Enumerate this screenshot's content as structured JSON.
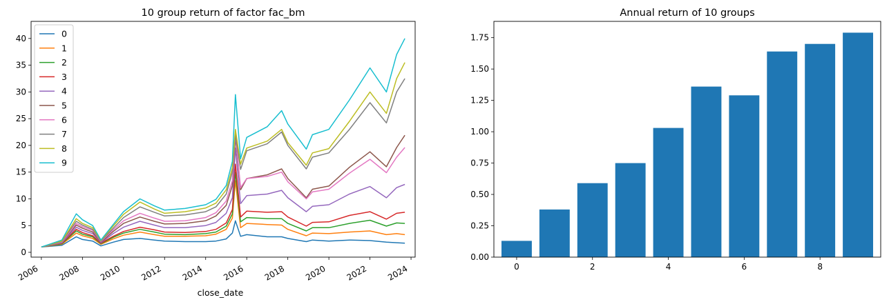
{
  "chart_data": [
    {
      "type": "line",
      "title": "10 group return of factor fac_bm",
      "xlabel": "close_date",
      "ylabel": "",
      "xlim": [
        2005.5,
        2024.2
      ],
      "ylim": [
        -0.9,
        43.2
      ],
      "xticks": [
        "2006",
        "2008",
        "2010",
        "2012",
        "2014",
        "2016",
        "2018",
        "2020",
        "2022",
        "2024"
      ],
      "xtick_values": [
        2006,
        2008,
        2010,
        2012,
        2014,
        2016,
        2018,
        2020,
        2022,
        2024
      ],
      "yticks": [
        "0",
        "5",
        "10",
        "15",
        "20",
        "25",
        "30",
        "35",
        "40"
      ],
      "ytick_values": [
        0,
        5,
        10,
        15,
        20,
        25,
        30,
        35,
        40
      ],
      "grid": false,
      "legend_position": "top-left",
      "series": [
        {
          "name": "0",
          "color": "#1f77b4",
          "x": [
            2006.0,
            2007.0,
            2007.7,
            2008.0,
            2008.5,
            2008.9,
            2009.5,
            2010.0,
            2010.8,
            2011.5,
            2012.0,
            2013.0,
            2014.0,
            2014.5,
            2015.0,
            2015.3,
            2015.45,
            2015.7,
            2016.0,
            2017.0,
            2017.7,
            2018.0,
            2018.9,
            2019.2,
            2020.0,
            2021.0,
            2022.0,
            2022.8,
            2023.3,
            2023.7
          ],
          "y": [
            1.0,
            1.3,
            2.9,
            2.4,
            2.1,
            1.2,
            1.9,
            2.4,
            2.6,
            2.3,
            2.1,
            2.0,
            2.0,
            2.1,
            2.5,
            3.6,
            5.9,
            3.0,
            3.3,
            2.9,
            2.9,
            2.6,
            2.0,
            2.3,
            2.1,
            2.3,
            2.2,
            1.9,
            1.8,
            1.7
          ]
        },
        {
          "name": "1",
          "color": "#ff7f0e",
          "x": [
            2006.0,
            2007.0,
            2007.7,
            2008.0,
            2008.5,
            2008.9,
            2009.5,
            2010.0,
            2010.8,
            2011.5,
            2012.0,
            2013.0,
            2014.0,
            2014.5,
            2015.0,
            2015.3,
            2015.45,
            2015.7,
            2016.0,
            2017.0,
            2017.7,
            2018.0,
            2018.9,
            2019.2,
            2020.0,
            2021.0,
            2022.0,
            2022.8,
            2023.3,
            2023.7
          ],
          "y": [
            1.0,
            1.5,
            3.6,
            3.1,
            2.6,
            1.5,
            2.5,
            3.2,
            3.8,
            3.3,
            3.0,
            3.0,
            3.1,
            3.4,
            4.3,
            6.4,
            13.4,
            4.6,
            5.4,
            5.2,
            5.1,
            4.3,
            3.1,
            3.6,
            3.5,
            3.8,
            4.0,
            3.3,
            3.5,
            3.3
          ]
        },
        {
          "name": "2",
          "color": "#2ca02c",
          "x": [
            2006.0,
            2007.0,
            2007.7,
            2008.0,
            2008.5,
            2008.9,
            2009.5,
            2010.0,
            2010.8,
            2011.5,
            2012.0,
            2013.0,
            2014.0,
            2014.5,
            2015.0,
            2015.3,
            2015.45,
            2015.7,
            2016.0,
            2017.0,
            2017.7,
            2018.0,
            2018.9,
            2019.2,
            2020.0,
            2021.0,
            2022.0,
            2022.8,
            2023.3,
            2023.7
          ],
          "y": [
            1.0,
            1.6,
            4.0,
            3.4,
            2.9,
            1.6,
            2.8,
            3.6,
            4.3,
            3.8,
            3.4,
            3.3,
            3.5,
            3.8,
            4.9,
            7.2,
            15.0,
            5.7,
            6.5,
            6.3,
            6.3,
            5.4,
            4.0,
            4.6,
            4.6,
            5.4,
            6.0,
            4.9,
            5.5,
            5.4
          ]
        },
        {
          "name": "3",
          "color": "#d62728",
          "x": [
            2006.0,
            2007.0,
            2007.7,
            2008.0,
            2008.5,
            2008.9,
            2009.5,
            2010.0,
            2010.8,
            2011.5,
            2012.0,
            2013.0,
            2014.0,
            2014.5,
            2015.0,
            2015.3,
            2015.45,
            2015.7,
            2016.0,
            2017.0,
            2017.7,
            2018.0,
            2018.9,
            2019.2,
            2020.0,
            2021.0,
            2022.0,
            2022.8,
            2023.3,
            2023.7
          ],
          "y": [
            1.0,
            1.7,
            4.3,
            3.7,
            3.1,
            1.7,
            3.0,
            3.9,
            4.7,
            4.2,
            3.8,
            3.7,
            3.9,
            4.3,
            5.5,
            8.0,
            16.5,
            6.6,
            7.7,
            7.5,
            7.6,
            6.6,
            4.9,
            5.6,
            5.7,
            6.9,
            7.6,
            6.2,
            7.3,
            7.5
          ]
        },
        {
          "name": "4",
          "color": "#9467bd",
          "x": [
            2006.0,
            2007.0,
            2007.7,
            2008.0,
            2008.5,
            2008.9,
            2009.5,
            2010.0,
            2010.8,
            2011.5,
            2012.0,
            2013.0,
            2014.0,
            2014.5,
            2015.0,
            2015.3,
            2015.45,
            2015.7,
            2016.0,
            2017.0,
            2017.7,
            2018.0,
            2018.9,
            2019.2,
            2020.0,
            2021.0,
            2022.0,
            2022.8,
            2023.3,
            2023.7
          ],
          "y": [
            1.0,
            1.8,
            4.7,
            4.1,
            3.5,
            1.8,
            3.5,
            4.7,
            5.8,
            5.1,
            4.6,
            4.6,
            5.0,
            5.6,
            7.3,
            10.2,
            19.5,
            9.1,
            10.6,
            10.9,
            11.6,
            10.2,
            7.6,
            8.6,
            8.9,
            10.9,
            12.3,
            10.2,
            12.1,
            12.7
          ]
        },
        {
          "name": "5",
          "color": "#8c564b",
          "x": [
            2006.0,
            2007.0,
            2007.7,
            2008.0,
            2008.5,
            2008.9,
            2009.5,
            2010.0,
            2010.8,
            2011.5,
            2012.0,
            2013.0,
            2014.0,
            2014.5,
            2015.0,
            2015.3,
            2015.45,
            2015.7,
            2016.0,
            2017.0,
            2017.7,
            2018.0,
            2018.9,
            2019.2,
            2020.0,
            2021.0,
            2022.0,
            2022.8,
            2023.3,
            2023.7
          ],
          "y": [
            1.0,
            1.9,
            5.1,
            4.5,
            3.8,
            1.9,
            3.9,
            5.4,
            6.6,
            5.8,
            5.3,
            5.4,
            5.9,
            6.8,
            8.8,
            12.5,
            21.5,
            11.7,
            13.8,
            14.5,
            15.6,
            13.8,
            10.2,
            11.8,
            12.4,
            15.9,
            18.8,
            16.0,
            19.6,
            21.9
          ]
        },
        {
          "name": "6",
          "color": "#e377c2",
          "x": [
            2006.0,
            2007.0,
            2007.7,
            2008.0,
            2008.5,
            2008.9,
            2009.5,
            2010.0,
            2010.8,
            2011.5,
            2012.0,
            2013.0,
            2014.0,
            2014.5,
            2015.0,
            2015.3,
            2015.45,
            2015.7,
            2016.0,
            2017.0,
            2017.7,
            2018.0,
            2018.9,
            2019.2,
            2020.0,
            2021.0,
            2022.0,
            2022.8,
            2023.3,
            2023.7
          ],
          "y": [
            1.0,
            1.9,
            5.4,
            4.8,
            4.1,
            2.0,
            4.2,
            5.9,
            7.3,
            6.4,
            5.8,
            5.9,
            6.5,
            7.4,
            9.6,
            13.4,
            22.2,
            12.1,
            13.8,
            14.2,
            15.0,
            13.2,
            10.0,
            11.3,
            11.8,
            14.8,
            17.4,
            14.9,
            17.8,
            19.6
          ]
        },
        {
          "name": "7",
          "color": "#7f7f7f",
          "x": [
            2006.0,
            2007.0,
            2007.7,
            2008.0,
            2008.5,
            2008.9,
            2009.5,
            2010.0,
            2010.8,
            2011.5,
            2012.0,
            2013.0,
            2014.0,
            2014.5,
            2015.0,
            2015.3,
            2015.45,
            2015.7,
            2016.0,
            2017.0,
            2017.7,
            2018.0,
            2018.9,
            2019.2,
            2020.0,
            2021.0,
            2022.0,
            2022.8,
            2023.3,
            2023.7
          ],
          "y": [
            1.0,
            2.0,
            5.8,
            5.1,
            4.3,
            2.1,
            4.5,
            6.5,
            8.5,
            7.5,
            6.8,
            7.0,
            7.6,
            8.5,
            10.9,
            15.0,
            22.0,
            15.5,
            19.0,
            20.3,
            22.5,
            20.0,
            15.6,
            17.8,
            18.6,
            23.0,
            28.0,
            24.2,
            30.0,
            32.5
          ]
        },
        {
          "name": "8",
          "color": "#bcbd22",
          "x": [
            2006.0,
            2007.0,
            2007.7,
            2008.0,
            2008.5,
            2008.9,
            2009.5,
            2010.0,
            2010.8,
            2011.5,
            2012.0,
            2013.0,
            2014.0,
            2014.5,
            2015.0,
            2015.3,
            2015.45,
            2015.7,
            2016.0,
            2017.0,
            2017.7,
            2018.0,
            2018.9,
            2019.2,
            2020.0,
            2021.0,
            2022.0,
            2022.8,
            2023.3,
            2023.7
          ],
          "y": [
            1.0,
            2.1,
            6.3,
            5.4,
            4.6,
            2.2,
            4.9,
            7.1,
            9.4,
            8.1,
            7.3,
            7.6,
            8.3,
            9.2,
            11.7,
            15.8,
            23.0,
            16.5,
            19.5,
            20.8,
            23.0,
            20.5,
            16.3,
            18.6,
            19.4,
            24.5,
            30.0,
            26.0,
            32.5,
            35.5
          ]
        },
        {
          "name": "9",
          "color": "#17becf",
          "x": [
            2006.0,
            2007.0,
            2007.7,
            2008.0,
            2008.5,
            2008.9,
            2009.5,
            2010.0,
            2010.8,
            2011.5,
            2012.0,
            2013.0,
            2014.0,
            2014.5,
            2015.0,
            2015.3,
            2015.45,
            2015.7,
            2016.0,
            2017.0,
            2017.7,
            2018.0,
            2018.9,
            2019.2,
            2020.0,
            2021.0,
            2022.0,
            2022.8,
            2023.3,
            2023.7
          ],
          "y": [
            1.0,
            2.3,
            7.2,
            6.1,
            5.0,
            2.3,
            5.2,
            7.6,
            10.0,
            8.7,
            7.9,
            8.2,
            8.9,
            9.9,
            12.5,
            17.0,
            29.5,
            17.5,
            21.5,
            23.5,
            26.5,
            24.0,
            19.3,
            22.0,
            23.0,
            28.5,
            34.5,
            30.0,
            37.0,
            40.0
          ]
        }
      ]
    },
    {
      "type": "bar",
      "title": "Annual return of 10 groups",
      "xlabel": "",
      "ylabel": "",
      "categories": [
        "0",
        "1",
        "2",
        "3",
        "4",
        "5",
        "6",
        "7",
        "8",
        "9"
      ],
      "values": [
        0.13,
        0.38,
        0.59,
        0.75,
        1.03,
        1.36,
        1.29,
        1.64,
        1.7,
        1.79
      ],
      "xlim": [
        -0.6,
        9.6
      ],
      "ylim": [
        0,
        1.88
      ],
      "xticks": [
        "0",
        "2",
        "4",
        "6",
        "8"
      ],
      "xtick_values": [
        0,
        2,
        4,
        6,
        8
      ],
      "yticks": [
        "0.00",
        "0.25",
        "0.50",
        "0.75",
        "1.00",
        "1.25",
        "1.50",
        "1.75"
      ],
      "ytick_values": [
        0,
        0.25,
        0.5,
        0.75,
        1.0,
        1.25,
        1.5,
        1.75
      ],
      "bar_color": "#1f77b4",
      "grid": false
    }
  ]
}
